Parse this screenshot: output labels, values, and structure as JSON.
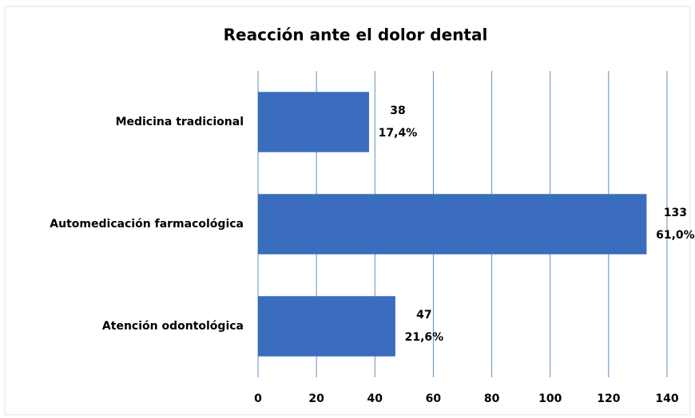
{
  "chart_data": {
    "type": "barh",
    "title": "Reacción ante el dolor dental",
    "categories": [
      "Medicina tradicional",
      "Automedicación farmacológica",
      "Atención odontológica"
    ],
    "values": [
      38,
      133,
      47
    ],
    "percent_labels": [
      "17,4%",
      "61,0%",
      "21,6%"
    ],
    "color": "#3a6dbd",
    "xlim": [
      0,
      140
    ],
    "xticks": [
      0,
      20,
      40,
      60,
      80,
      100,
      120,
      140
    ],
    "grid": true
  }
}
